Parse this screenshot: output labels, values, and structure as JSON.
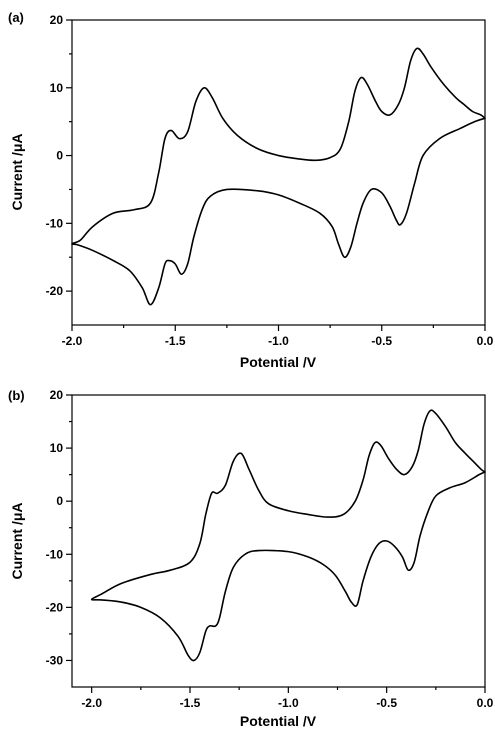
{
  "chart_data": [
    {
      "panel": "(a)",
      "type": "line",
      "xlabel": "Potential /V",
      "ylabel": "Current /μA",
      "xlim": [
        -2.0,
        0.0
      ],
      "ylim": [
        -25,
        20
      ],
      "xticks": [
        -2.0,
        -1.5,
        -1.0,
        -0.5,
        0.0
      ],
      "xtick_labels": [
        "-2.0",
        "-1.5",
        "-1.0",
        "-0.5",
        "0.0"
      ],
      "yticks": [
        -20,
        -10,
        0,
        10,
        20
      ],
      "ytick_labels": [
        "-20",
        "-10",
        "0",
        "10",
        "20"
      ],
      "grid": false,
      "series": [
        {
          "points": [
            [
              0.0,
              5.5
            ],
            [
              -0.02,
              6.0
            ],
            [
              -0.06,
              6.5
            ],
            [
              -0.1,
              7.5
            ],
            [
              -0.14,
              8.5
            ],
            [
              -0.2,
              10.5
            ],
            [
              -0.26,
              13.0
            ],
            [
              -0.3,
              15.0
            ],
            [
              -0.33,
              15.8
            ],
            [
              -0.36,
              14.0
            ],
            [
              -0.39,
              10.0
            ],
            [
              -0.42,
              7.5
            ],
            [
              -0.46,
              6.0
            ],
            [
              -0.5,
              6.5
            ],
            [
              -0.53,
              8.0
            ],
            [
              -0.57,
              10.5
            ],
            [
              -0.6,
              11.5
            ],
            [
              -0.63,
              9.5
            ],
            [
              -0.66,
              5.0
            ],
            [
              -0.7,
              1.0
            ],
            [
              -0.75,
              -0.3
            ],
            [
              -0.82,
              -0.7
            ],
            [
              -0.9,
              -0.5
            ],
            [
              -1.0,
              0.0
            ],
            [
              -1.1,
              1.0
            ],
            [
              -1.2,
              3.0
            ],
            [
              -1.27,
              5.5
            ],
            [
              -1.32,
              8.5
            ],
            [
              -1.36,
              10.0
            ],
            [
              -1.4,
              8.0
            ],
            [
              -1.44,
              3.5
            ],
            [
              -1.48,
              2.5
            ],
            [
              -1.52,
              3.7
            ],
            [
              -1.55,
              2.5
            ],
            [
              -1.58,
              -2.5
            ],
            [
              -1.62,
              -7.0
            ],
            [
              -1.7,
              -8.0
            ],
            [
              -1.8,
              -8.5
            ],
            [
              -1.9,
              -10.5
            ],
            [
              -1.96,
              -12.5
            ],
            [
              -2.0,
              -13.0
            ],
            [
              -1.97,
              -13.2
            ],
            [
              -1.9,
              -14.0
            ],
            [
              -1.8,
              -15.5
            ],
            [
              -1.72,
              -17.0
            ],
            [
              -1.66,
              -19.5
            ],
            [
              -1.62,
              -22.0
            ],
            [
              -1.58,
              -19.5
            ],
            [
              -1.55,
              -16.0
            ],
            [
              -1.53,
              -15.5
            ],
            [
              -1.5,
              -16.0
            ],
            [
              -1.47,
              -17.5
            ],
            [
              -1.44,
              -16.0
            ],
            [
              -1.41,
              -12.0
            ],
            [
              -1.37,
              -8.0
            ],
            [
              -1.33,
              -6.0
            ],
            [
              -1.25,
              -5.0
            ],
            [
              -1.1,
              -5.2
            ],
            [
              -1.0,
              -5.8
            ],
            [
              -0.9,
              -7.0
            ],
            [
              -0.8,
              -8.5
            ],
            [
              -0.74,
              -10.5
            ],
            [
              -0.71,
              -13.0
            ],
            [
              -0.68,
              -15.0
            ],
            [
              -0.65,
              -13.5
            ],
            [
              -0.62,
              -10.0
            ],
            [
              -0.59,
              -7.0
            ],
            [
              -0.55,
              -5.0
            ],
            [
              -0.5,
              -5.5
            ],
            [
              -0.46,
              -7.5
            ],
            [
              -0.43,
              -9.5
            ],
            [
              -0.41,
              -10.2
            ],
            [
              -0.38,
              -8.5
            ],
            [
              -0.34,
              -4.0
            ],
            [
              -0.3,
              0.0
            ],
            [
              -0.22,
              2.5
            ],
            [
              -0.12,
              4.0
            ],
            [
              -0.05,
              5.0
            ],
            [
              0.0,
              5.5
            ]
          ]
        }
      ]
    },
    {
      "panel": "(b)",
      "type": "line",
      "xlabel": "Potential /V",
      "ylabel": "Current /μA",
      "xlim": [
        -2.1,
        0.0
      ],
      "ylim": [
        -35,
        20
      ],
      "xticks": [
        -2.0,
        -1.5,
        -1.0,
        -0.5,
        0.0
      ],
      "xtick_labels": [
        "-2.0",
        "-1.5",
        "-1.0",
        "-0.5",
        "0.0"
      ],
      "yticks": [
        -30,
        -20,
        -10,
        0,
        10,
        20
      ],
      "ytick_labels": [
        "-30",
        "-20",
        "-10",
        "0",
        "10",
        "20"
      ],
      "grid": false,
      "series": [
        {
          "points": [
            [
              0.0,
              5.5
            ],
            [
              -0.02,
              6.0
            ],
            [
              -0.06,
              7.5
            ],
            [
              -0.1,
              9.0
            ],
            [
              -0.15,
              11.0
            ],
            [
              -0.2,
              14.0
            ],
            [
              -0.25,
              16.5
            ],
            [
              -0.28,
              17.0
            ],
            [
              -0.31,
              14.5
            ],
            [
              -0.34,
              9.5
            ],
            [
              -0.37,
              6.5
            ],
            [
              -0.41,
              5.0
            ],
            [
              -0.45,
              6.0
            ],
            [
              -0.49,
              8.0
            ],
            [
              -0.53,
              10.5
            ],
            [
              -0.56,
              11.0
            ],
            [
              -0.59,
              8.5
            ],
            [
              -0.62,
              4.0
            ],
            [
              -0.66,
              0.0
            ],
            [
              -0.72,
              -2.5
            ],
            [
              -0.8,
              -3.0
            ],
            [
              -0.9,
              -2.5
            ],
            [
              -1.0,
              -1.8
            ],
            [
              -1.1,
              -0.5
            ],
            [
              -1.15,
              2.0
            ],
            [
              -1.2,
              6.0
            ],
            [
              -1.24,
              9.0
            ],
            [
              -1.28,
              7.5
            ],
            [
              -1.32,
              3.0
            ],
            [
              -1.36,
              1.5
            ],
            [
              -1.39,
              1.5
            ],
            [
              -1.42,
              -2.5
            ],
            [
              -1.45,
              -8.0
            ],
            [
              -1.5,
              -11.5
            ],
            [
              -1.6,
              -13.0
            ],
            [
              -1.7,
              -13.8
            ],
            [
              -1.85,
              -15.5
            ],
            [
              -1.95,
              -17.5
            ],
            [
              -2.0,
              -18.5
            ],
            [
              -1.95,
              -18.6
            ],
            [
              -1.85,
              -19.0
            ],
            [
              -1.75,
              -20.0
            ],
            [
              -1.65,
              -22.0
            ],
            [
              -1.56,
              -25.5
            ],
            [
              -1.51,
              -29.0
            ],
            [
              -1.48,
              -30.0
            ],
            [
              -1.45,
              -28.5
            ],
            [
              -1.42,
              -24.5
            ],
            [
              -1.4,
              -23.5
            ],
            [
              -1.37,
              -23.5
            ],
            [
              -1.35,
              -22.0
            ],
            [
              -1.32,
              -17.0
            ],
            [
              -1.28,
              -12.5
            ],
            [
              -1.22,
              -10.0
            ],
            [
              -1.15,
              -9.3
            ],
            [
              -1.0,
              -9.5
            ],
            [
              -0.9,
              -10.5
            ],
            [
              -0.82,
              -12.0
            ],
            [
              -0.76,
              -14.0
            ],
            [
              -0.71,
              -17.0
            ],
            [
              -0.68,
              -19.0
            ],
            [
              -0.65,
              -19.5
            ],
            [
              -0.62,
              -15.0
            ],
            [
              -0.58,
              -10.5
            ],
            [
              -0.54,
              -8.0
            ],
            [
              -0.5,
              -7.5
            ],
            [
              -0.46,
              -8.5
            ],
            [
              -0.42,
              -10.5
            ],
            [
              -0.39,
              -13.0
            ],
            [
              -0.36,
              -11.5
            ],
            [
              -0.33,
              -6.5
            ],
            [
              -0.29,
              -2.0
            ],
            [
              -0.25,
              1.0
            ],
            [
              -0.18,
              2.5
            ],
            [
              -0.1,
              3.5
            ],
            [
              -0.03,
              5.0
            ],
            [
              0.0,
              5.5
            ]
          ]
        }
      ]
    }
  ]
}
